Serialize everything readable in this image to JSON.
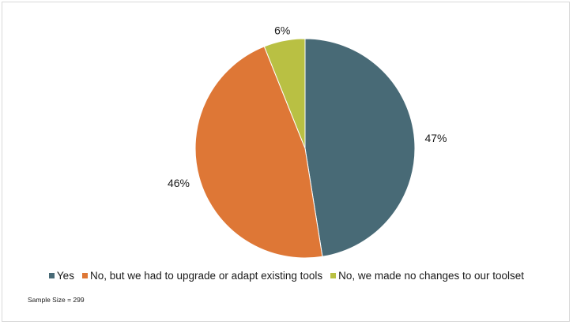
{
  "chart_data": {
    "type": "pie",
    "title": "",
    "categories": [
      "Yes",
      "No, but we had to upgrade or adapt existing tools",
      "No, we made no changes to our toolset"
    ],
    "values": [
      47,
      46,
      6
    ],
    "labels": [
      "47%",
      "46%",
      "6%"
    ],
    "colors": [
      "#486a76",
      "#de7736",
      "#b9c043"
    ],
    "legend_position": "bottom",
    "start_angle": "12 o'clock",
    "direction": "clockwise"
  },
  "legend": {
    "items": [
      {
        "label": "Yes",
        "color": "#486a76"
      },
      {
        "label": "No, but we had to upgrade or adapt existing tools",
        "color": "#de7736"
      },
      {
        "label": "No, we made no changes to our toolset",
        "color": "#b9c043"
      }
    ]
  },
  "note": "Sample Size = 299"
}
